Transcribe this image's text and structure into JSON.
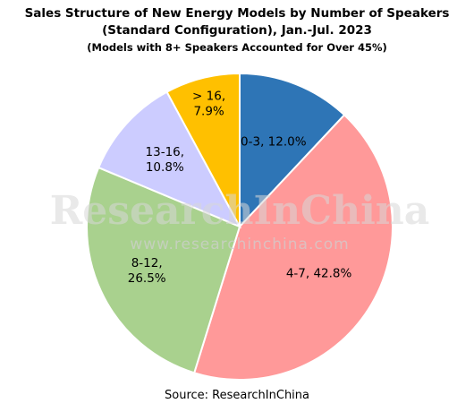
{
  "title_line1": "Sales Structure of New Energy Models by Number of Speakers",
  "title_line2": "(Standard Configuration), Jan.-Jul. 2023",
  "subtitle": "(Models with 8+ Speakers Accounted for Over 45%)",
  "source": "Source: ResearchInChina",
  "watermark": {
    "brand": "ResearchInChina",
    "url": "www.researchinchina.com"
  },
  "chart_data": {
    "type": "pie",
    "title": "Sales Structure of New Energy Models by Number of Speakers (Standard Configuration), Jan.-Jul. 2023",
    "subtitle": "(Models with 8+ Speakers Accounted for Over 45%)",
    "slices": [
      {
        "category": "0-3",
        "value": 12.0,
        "label_lines": [
          "0-3, 12.0%"
        ],
        "color": "#2e75b6"
      },
      {
        "category": "4-7",
        "value": 42.8,
        "label_lines": [
          "4-7, 42.8%"
        ],
        "color": "#ff9999"
      },
      {
        "category": "8-12",
        "value": 26.5,
        "label_lines": [
          "8-12,",
          "26.5%"
        ],
        "color": "#a9d18e"
      },
      {
        "category": "13-16",
        "value": 10.8,
        "label_lines": [
          "13-16,",
          "10.8%"
        ],
        "color": "#ccccff"
      },
      {
        "category": "> 16",
        "value": 7.9,
        "label_lines": [
          "> 16,",
          "7.9%"
        ],
        "color": "#ffc000"
      }
    ],
    "start_angle_deg": 0,
    "direction": "clockwise",
    "slice_border_color": "#ffffff"
  }
}
